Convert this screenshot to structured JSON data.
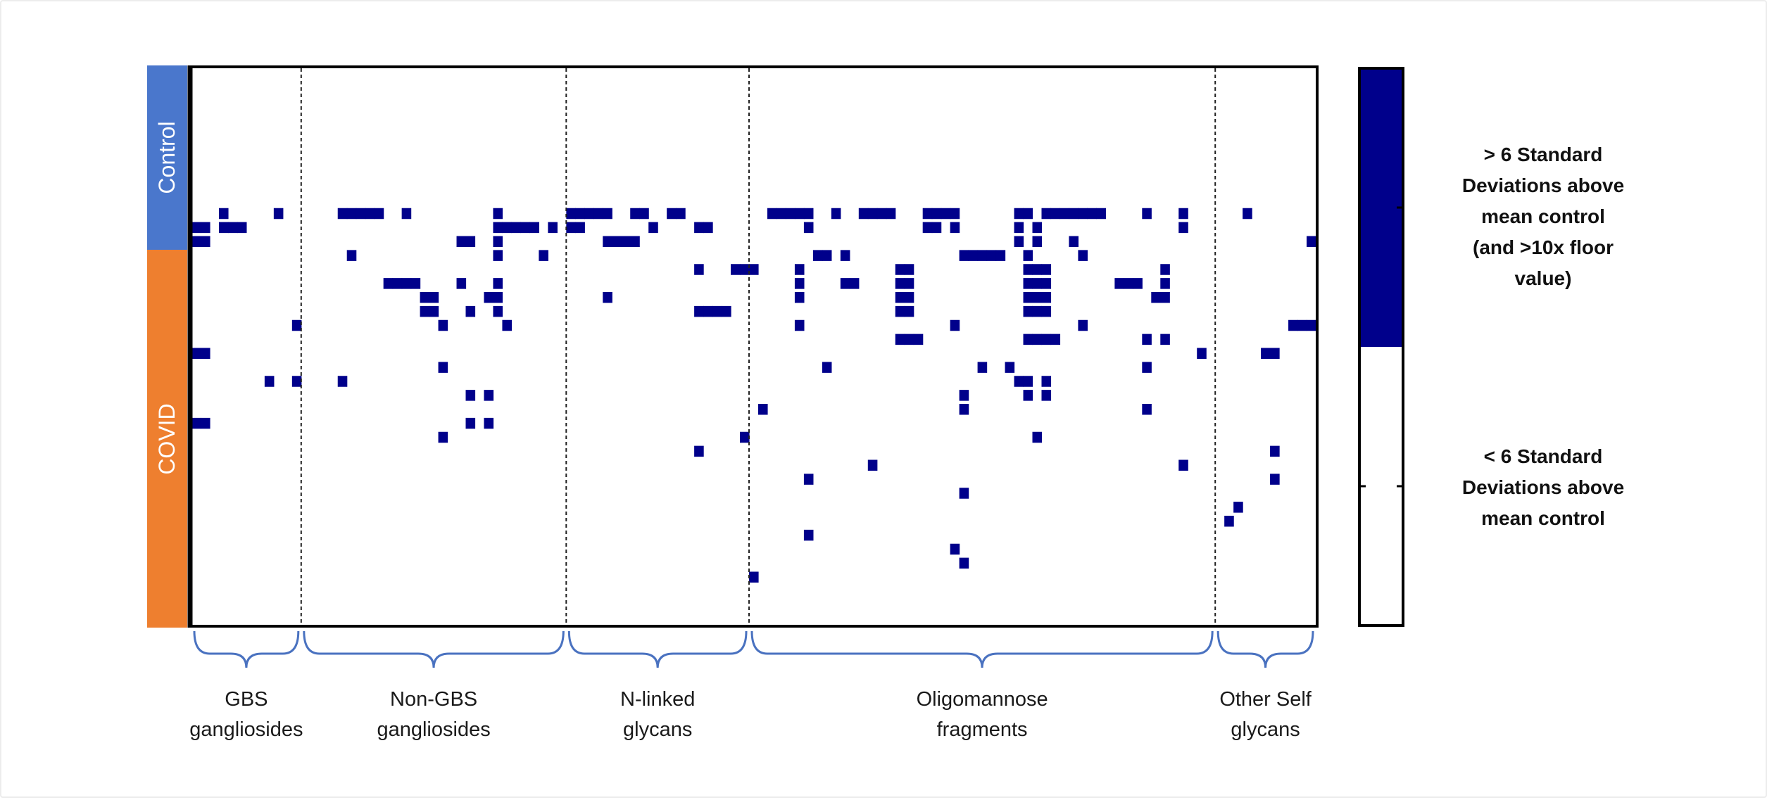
{
  "chart_data": {
    "type": "heatmap",
    "row_labels": [
      "Control",
      "COVID"
    ],
    "row_colors": {
      "Control": "#4a77cc",
      "COVID": "#ee7f2f"
    },
    "columns_total": 123,
    "rows_total": 40,
    "control_rows": 10,
    "colors": {
      "high": "#00008b",
      "low": "#ffffff",
      "brace": "#4a72c0"
    },
    "groups": [
      {
        "lines": [
          "GBS",
          "gangliosides"
        ],
        "start": 0,
        "end": 12
      },
      {
        "lines": [
          "Non-GBS",
          "gangliosides"
        ],
        "start": 12,
        "end": 41
      },
      {
        "lines": [
          "N-linked",
          "glycans"
        ],
        "start": 41,
        "end": 61
      },
      {
        "lines": [
          "Oligomannose",
          "fragments"
        ],
        "start": 61,
        "end": 112
      },
      {
        "lines": [
          "Other Self",
          "glycans"
        ],
        "start": 112,
        "end": 123
      }
    ],
    "legend": [
      {
        "lines": [
          "> 6 Standard",
          "Deviations above",
          "mean control",
          "(and >10x floor",
          "value)"
        ],
        "color": "#00008b"
      },
      {
        "lines": [
          "< 6 Standard",
          "Deviations above",
          "mean control"
        ],
        "color": "#ffffff"
      }
    ],
    "high_cells": [
      [
        10,
        3
      ],
      [
        10,
        9
      ],
      [
        10,
        16
      ],
      [
        10,
        17
      ],
      [
        10,
        18
      ],
      [
        10,
        19
      ],
      [
        10,
        20
      ],
      [
        10,
        23
      ],
      [
        10,
        33
      ],
      [
        10,
        41
      ],
      [
        10,
        42
      ],
      [
        10,
        43
      ],
      [
        10,
        44
      ],
      [
        10,
        45
      ],
      [
        10,
        48
      ],
      [
        10,
        49
      ],
      [
        10,
        52
      ],
      [
        10,
        53
      ],
      [
        10,
        63
      ],
      [
        10,
        64
      ],
      [
        10,
        65
      ],
      [
        10,
        66
      ],
      [
        10,
        67
      ],
      [
        10,
        70
      ],
      [
        10,
        73
      ],
      [
        10,
        74
      ],
      [
        10,
        75
      ],
      [
        10,
        76
      ],
      [
        10,
        80
      ],
      [
        10,
        81
      ],
      [
        10,
        82
      ],
      [
        10,
        83
      ],
      [
        10,
        90
      ],
      [
        10,
        91
      ],
      [
        10,
        93
      ],
      [
        10,
        94
      ],
      [
        10,
        95
      ],
      [
        10,
        96
      ],
      [
        10,
        97
      ],
      [
        10,
        98
      ],
      [
        10,
        99
      ],
      [
        10,
        104
      ],
      [
        10,
        108
      ],
      [
        10,
        115
      ],
      [
        11,
        0
      ],
      [
        11,
        1
      ],
      [
        11,
        3
      ],
      [
        11,
        4
      ],
      [
        11,
        5
      ],
      [
        11,
        33
      ],
      [
        11,
        34
      ],
      [
        11,
        35
      ],
      [
        11,
        36
      ],
      [
        11,
        37
      ],
      [
        11,
        39
      ],
      [
        11,
        41
      ],
      [
        11,
        42
      ],
      [
        11,
        50
      ],
      [
        11,
        55
      ],
      [
        11,
        56
      ],
      [
        11,
        67
      ],
      [
        11,
        80
      ],
      [
        11,
        81
      ],
      [
        11,
        83
      ],
      [
        11,
        90
      ],
      [
        11,
        92
      ],
      [
        11,
        108
      ],
      [
        12,
        0
      ],
      [
        12,
        1
      ],
      [
        12,
        29
      ],
      [
        12,
        30
      ],
      [
        12,
        33
      ],
      [
        12,
        45
      ],
      [
        12,
        46
      ],
      [
        12,
        47
      ],
      [
        12,
        48
      ],
      [
        12,
        90
      ],
      [
        12,
        92
      ],
      [
        12,
        96
      ],
      [
        12,
        122
      ],
      [
        13,
        17
      ],
      [
        13,
        33
      ],
      [
        13,
        38
      ],
      [
        13,
        68
      ],
      [
        13,
        69
      ],
      [
        13,
        71
      ],
      [
        13,
        84
      ],
      [
        13,
        85
      ],
      [
        13,
        86
      ],
      [
        13,
        87
      ],
      [
        13,
        88
      ],
      [
        13,
        91
      ],
      [
        13,
        97
      ],
      [
        14,
        55
      ],
      [
        14,
        59
      ],
      [
        14,
        60
      ],
      [
        14,
        61
      ],
      [
        14,
        66
      ],
      [
        14,
        77
      ],
      [
        14,
        78
      ],
      [
        14,
        91
      ],
      [
        14,
        92
      ],
      [
        14,
        93
      ],
      [
        14,
        106
      ],
      [
        15,
        21
      ],
      [
        15,
        22
      ],
      [
        15,
        23
      ],
      [
        15,
        24
      ],
      [
        15,
        29
      ],
      [
        15,
        33
      ],
      [
        15,
        66
      ],
      [
        15,
        71
      ],
      [
        15,
        72
      ],
      [
        15,
        77
      ],
      [
        15,
        78
      ],
      [
        15,
        91
      ],
      [
        15,
        92
      ],
      [
        15,
        93
      ],
      [
        15,
        101
      ],
      [
        15,
        102
      ],
      [
        15,
        103
      ],
      [
        15,
        106
      ],
      [
        16,
        25
      ],
      [
        16,
        26
      ],
      [
        16,
        32
      ],
      [
        16,
        33
      ],
      [
        16,
        45
      ],
      [
        16,
        66
      ],
      [
        16,
        77
      ],
      [
        16,
        78
      ],
      [
        16,
        91
      ],
      [
        16,
        92
      ],
      [
        16,
        93
      ],
      [
        16,
        105
      ],
      [
        16,
        106
      ],
      [
        17,
        25
      ],
      [
        17,
        26
      ],
      [
        17,
        30
      ],
      [
        17,
        33
      ],
      [
        17,
        55
      ],
      [
        17,
        56
      ],
      [
        17,
        57
      ],
      [
        17,
        58
      ],
      [
        17,
        77
      ],
      [
        17,
        78
      ],
      [
        17,
        91
      ],
      [
        17,
        92
      ],
      [
        17,
        93
      ],
      [
        18,
        11
      ],
      [
        18,
        27
      ],
      [
        18,
        34
      ],
      [
        18,
        66
      ],
      [
        18,
        83
      ],
      [
        18,
        97
      ],
      [
        18,
        120
      ],
      [
        18,
        121
      ],
      [
        18,
        122
      ],
      [
        19,
        77
      ],
      [
        19,
        78
      ],
      [
        19,
        79
      ],
      [
        19,
        91
      ],
      [
        19,
        92
      ],
      [
        19,
        93
      ],
      [
        19,
        94
      ],
      [
        19,
        104
      ],
      [
        19,
        106
      ],
      [
        20,
        0
      ],
      [
        20,
        1
      ],
      [
        20,
        110
      ],
      [
        20,
        117
      ],
      [
        20,
        118
      ],
      [
        21,
        27
      ],
      [
        21,
        69
      ],
      [
        21,
        86
      ],
      [
        21,
        89
      ],
      [
        21,
        104
      ],
      [
        22,
        8
      ],
      [
        22,
        11
      ],
      [
        22,
        16
      ],
      [
        22,
        90
      ],
      [
        22,
        91
      ],
      [
        22,
        93
      ],
      [
        23,
        30
      ],
      [
        23,
        32
      ],
      [
        23,
        84
      ],
      [
        23,
        91
      ],
      [
        23,
        93
      ],
      [
        24,
        62
      ],
      [
        24,
        84
      ],
      [
        24,
        104
      ],
      [
        25,
        0
      ],
      [
        25,
        1
      ],
      [
        25,
        30
      ],
      [
        25,
        32
      ],
      [
        26,
        27
      ],
      [
        26,
        60
      ],
      [
        26,
        92
      ],
      [
        27,
        55
      ],
      [
        27,
        118
      ],
      [
        28,
        74
      ],
      [
        28,
        108
      ],
      [
        29,
        67
      ],
      [
        29,
        118
      ],
      [
        30,
        84
      ],
      [
        31,
        114
      ],
      [
        32,
        113
      ],
      [
        33,
        67
      ],
      [
        34,
        83
      ],
      [
        35,
        84
      ],
      [
        36,
        61
      ]
    ]
  }
}
